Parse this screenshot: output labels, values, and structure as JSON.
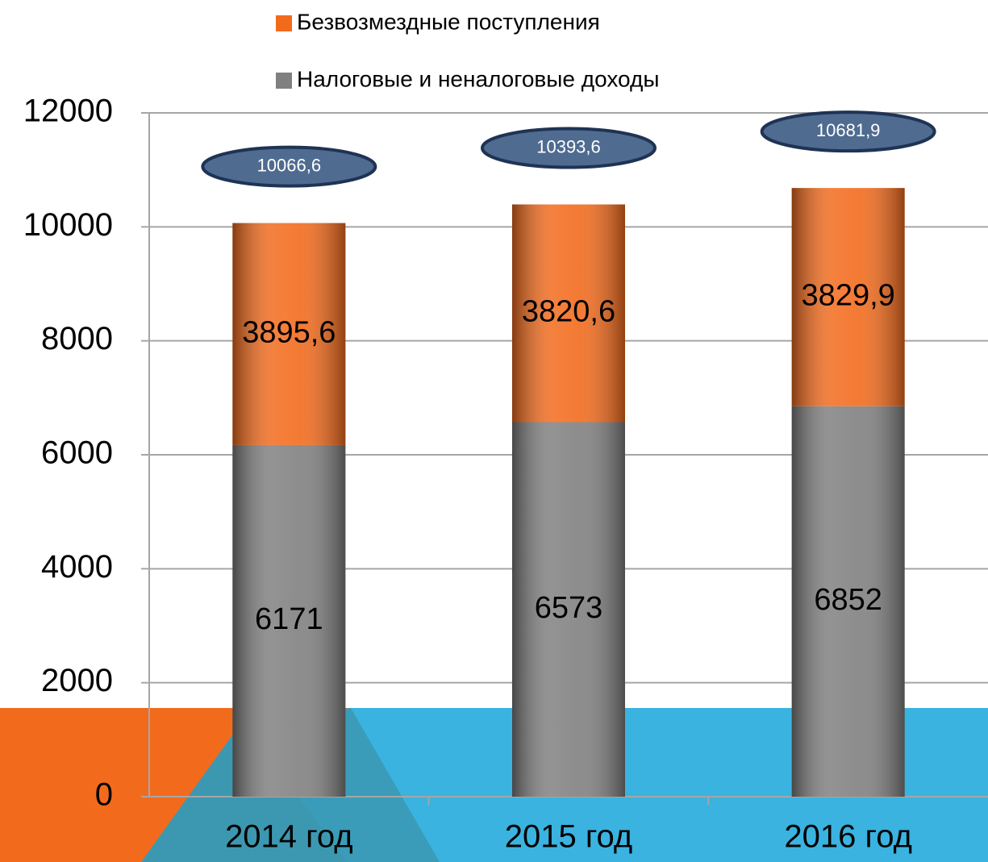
{
  "chart_data": {
    "type": "stacked_bar",
    "categories": [
      "2014 год",
      "2015 год",
      "2016 год"
    ],
    "series": [
      {
        "name": "Налоговые и неналоговые доходы",
        "color": "#808080",
        "values": [
          6171,
          6573,
          6852
        ],
        "value_labels": [
          "6171",
          "6573",
          "6852"
        ]
      },
      {
        "name": "Безвозмездные поступления",
        "color": "#f26b1d",
        "values": [
          3895.6,
          3820.6,
          3829.9
        ],
        "value_labels": [
          "3895,6",
          "3820,6",
          "3829,9"
        ]
      }
    ],
    "totals": [
      10066.6,
      10393.6,
      10681.9
    ],
    "total_labels": [
      "10066,6",
      "10393,6",
      "10681,9"
    ],
    "ylim": [
      0,
      12000
    ],
    "yticks": [
      0,
      2000,
      4000,
      6000,
      8000,
      10000,
      12000
    ],
    "grid": true
  }
}
